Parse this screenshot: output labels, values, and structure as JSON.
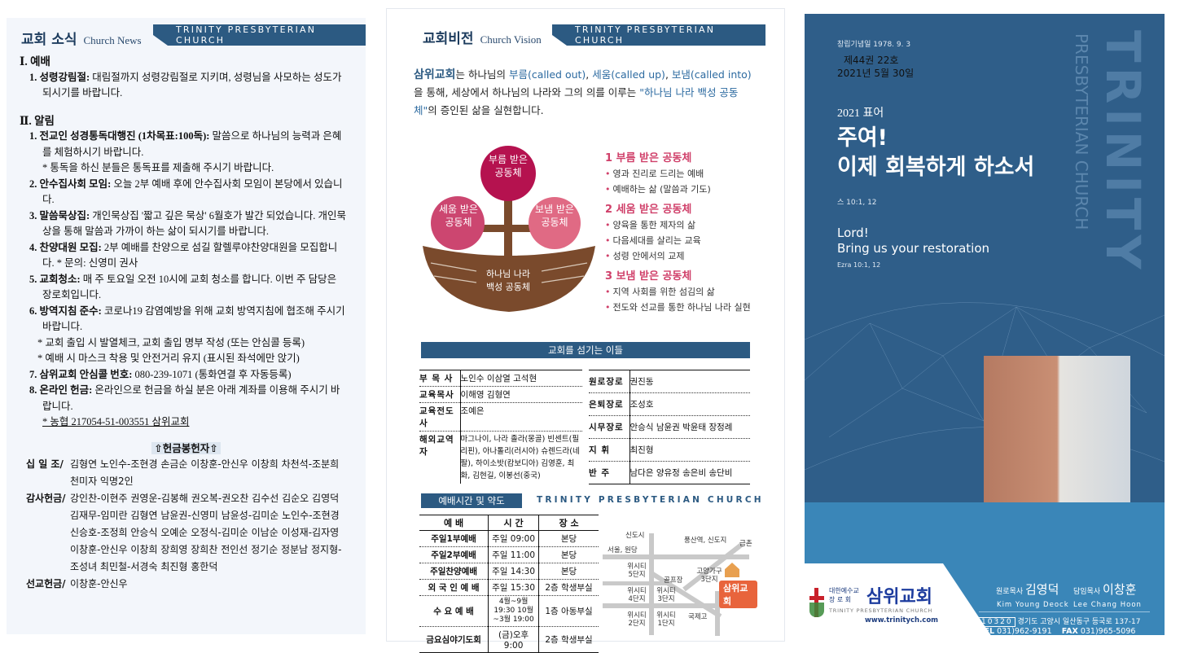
{
  "news": {
    "title": "교회 소식",
    "subtitle": "Church News",
    "banner": "TRINITY PRESBYTERIAN CHURCH",
    "sections": [
      {
        "heading": "Ⅰ. 예배"
      },
      {
        "heading": "Ⅱ. 알림"
      }
    ],
    "worship_items": [
      {
        "label": "1. 성령강림절:",
        "text": " 대림절까지 성령강림절로 지키며, 성령님을 사모하는 성도가 되시기를 바랍니다."
      }
    ],
    "notice_items": [
      {
        "label": "1. 전교인 성경통독대행진 (1차목표:100독):",
        "text": " 말씀으로 하나님의 능력과 은혜를 체험하시기 바랍니다.",
        "note": "* 통독을 하신 분들은 통독표를 제출해 주시기 바랍니다."
      },
      {
        "label": "2. 안수집사회 모임:",
        "text": " 오늘 2부 예배 후에 안수집사회 모임이 본당에서 있습니다."
      },
      {
        "label": "3. 말씀묵상집:",
        "text": " 개인묵상집 '짧고 깊은 묵상' 6월호가 발간 되었습니다. 개인묵상을 통해 말씀과 가까이 하는 삶이 되시기를 바랍니다."
      },
      {
        "label": "4. 찬양대원 모집:",
        "text": " 2부 예배를 찬양으로 섬길 할렐루야찬양대원을 모집합니다. * 문의: 신영미 권사"
      },
      {
        "label": "5. 교회청소:",
        "text": " 매 주 토요일 오전 10시에 교회 청소를 합니다. 이번 주 담당은 장로회입니다."
      },
      {
        "label": "6. 방역지침 준수:",
        "text": " 코로나19 감염예방을 위해 교회 방역지침에 협조해 주시기 바랍니다.",
        "note": "* 교회 출입 시 발열체크, 교회 출입 명부 작성 (또는 안심콜 등록)",
        "note2": "* 예배 시 마스크 착용 및 안전거리 유지 (표시된 좌석에만 앉기)"
      },
      {
        "label": "7. 삼위교회 안심콜 번호:",
        "text": " 080-239-1071 (통화연결 후 자동등록)"
      },
      {
        "label": "8. 온라인 헌금:",
        "text": " 온라인으로  헌금을 하실 분은 아래 계좌를 이용해 주시기 바랍니다.",
        "account": "* 농협 217054-51-003551 삼위교회"
      }
    ],
    "offering_title": "⇧헌금봉헌자⇧",
    "offerings": [
      {
        "type": "십 일 조/",
        "names": "김형연 노인수-조현경 손금순 이창훈-안신우 이창희 차천석-조분희 천미자 익명2인"
      },
      {
        "type": "감사헌금/",
        "names": "강인찬-이현주 권영운-김봉해 권오복-권오찬 김수선 김순오 김영덕 김재무-임미란 김형연 남윤권-신영미 남윤성-김미순 노인수-조현경 신승호-조정희 안승식 오예순 오정식-김미순 이남순 이성재-김자영 이창훈-안신우 이창희 장희영 장희찬 전인선 정기순 정분남 정지형-조성녀 최민철-서경숙 최진형 홍한덕"
      },
      {
        "type": "선교헌금/",
        "names": "이창훈-안신우"
      }
    ]
  },
  "vision": {
    "title": "교회비전",
    "subtitle": "Church Vision",
    "banner": "TRINITY PRESBYTERIAN CHURCH",
    "intro": {
      "church": "삼위교회",
      "t1": "는 하나님의 ",
      "c1": "부름(called out)",
      "t2": ", ",
      "c2": "세움(called up)",
      "t3": ", ",
      "c3": "보냄(called into)",
      "t4": "을 통해, 세상에서 하나님의 나라와 그의 의를 이루는 ",
      "c4": "\"하나님 나라 백성 공동체\"",
      "t5": "의 증인된 삶을 실현합니다."
    },
    "diagram": {
      "top": "부름 받은 공동체",
      "left": "세움 받은 공동체",
      "right": "보냄 받은 공동체",
      "boat": "하나님 나라 백성 공동체",
      "colors": {
        "top": "#b5124f",
        "left": "#cc4670",
        "right": "#e06a84",
        "boat": "#7a4a2c"
      }
    },
    "points": [
      {
        "heading": "1 부름 받은 공동체",
        "items": [
          "영과 진리로 드리는 예배",
          "예배하는 삶 (말씀과 기도)"
        ]
      },
      {
        "heading": "2 세움 받은 공동체",
        "items": [
          "양육을 통한 제자의 삶",
          "다음세대를 살리는 교육",
          "성령 안에서의 교제"
        ]
      },
      {
        "heading": "3 보냄 받은 공동체",
        "items": [
          "지역 사회를 위한 섬김의 삶",
          "전도와 선교를 통한 하나님 나라 실현"
        ]
      }
    ],
    "staff_title": "교회를 섬기는 이들",
    "staff_left": [
      {
        "role": "부 목 사",
        "names": "노인수 이삼열 고석현"
      },
      {
        "role": "교육목사",
        "names": "이해영 김형연"
      },
      {
        "role": "교육전도사",
        "names": "조예은"
      },
      {
        "role": "해외교역자",
        "names": "마그나이, 나라 졸라(몽골) 빈센트(필리핀), 아나톨리(러시아) 슈렌드라(네팔), 하이소밧(캄보디아) 김영훈, 최 화, 김현길, 이봉선(중국)"
      }
    ],
    "staff_right": [
      {
        "role": "원로장로",
        "names": "권진동"
      },
      {
        "role": "은퇴장로",
        "names": "조성호"
      },
      {
        "role": "시무장로",
        "names": "안승식 남윤권 박윤태 장정례"
      },
      {
        "role": "지 휘",
        "names": "최진형"
      },
      {
        "role": "반 주",
        "names": "남다은 양유정 송은비 송단비"
      }
    ],
    "schedule_title": "예배시간 및 약도",
    "schedule_banner": "TRINITY PRESBYTERIAN CHURCH",
    "schedule_headers": [
      "예 배",
      "시 간",
      "장 소"
    ],
    "schedule": [
      [
        "주일1부예배",
        "주일 09:00",
        "본당"
      ],
      [
        "주일2부예배",
        "주일 11:00",
        "본당"
      ],
      [
        "주일찬양예배",
        "주일 14:30",
        "본당"
      ],
      [
        "외 국 인 예 배",
        "주일 15:30",
        "2층 학생부실"
      ],
      [
        "수 요 예 배",
        "4월~9월 19:30 10월~3월 19:00",
        "1층 아동부실"
      ],
      [
        "금요심야기도회",
        "(금)오후 9:00",
        "2층 학생부실"
      ]
    ],
    "map": {
      "labels": [
        "신도시",
        "풍산역, 신도지",
        "금촌",
        "서울, 원당",
        "위시티 5단지",
        "골프장",
        "고양가구 3단지",
        "위시티 4단지",
        "위시티 3단지",
        "위시티 2단지",
        "위시티 1단지",
        "국제고"
      ],
      "church": "삼위교회",
      "church_color": "#e8643c"
    }
  },
  "cover": {
    "founded": "창립기념일 1978. 9. 3",
    "volume": "제44권 22호",
    "date": "2021년 5월 30일",
    "motto_label": "2021 표어",
    "motto_line1": "주여!",
    "motto_line2": "이제 회복하게 하소서",
    "motto_ref": "스 10:1, 12",
    "motto_en1": "Lord!",
    "motto_en2": "Bring us your restoration",
    "motto_en_ref": "Ezra 10:1, 12",
    "vertical_big": "TRINITY",
    "vertical_small": "PRESBYTERIAN CHURCH",
    "logo_small1": "대한예수교",
    "logo_small2": "장 로 회",
    "logo_name": "삼위교회",
    "logo_en": "TRINITY PRESBYTERIAN CHURCH",
    "website": "www.trinitych.com",
    "pastor_emeritus_label": "원로목사",
    "pastor_emeritus": "김영덕",
    "pastor_emeritus_en": "Kim Young Deock",
    "senior_pastor_label": "담임목사",
    "senior_pastor": "이창훈",
    "senior_pastor_en": "Lee Chang Hoon",
    "postcode": "10320",
    "address": "경기도 고양시 일산동구 등국로 137-17",
    "tel_label": "TEL",
    "tel": "031)962-9191",
    "fax_label": "FAX",
    "fax": "031)965-5096",
    "colors": {
      "primary": "#2f5e89",
      "accent": "#3a86b8"
    }
  }
}
